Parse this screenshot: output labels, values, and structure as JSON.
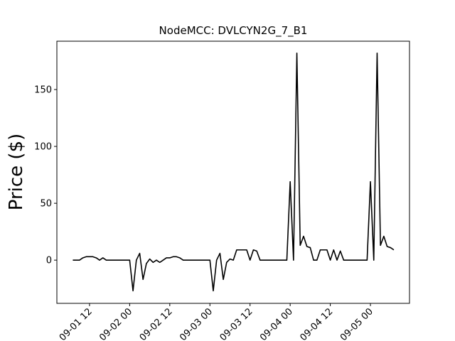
{
  "chart_data": {
    "type": "line",
    "title": "NodeMCC: DVLCYN2G_7_B1",
    "y_label": "Price ($)",
    "x": [
      "09-01 07:00",
      "09-01 08:00",
      "09-01 09:00",
      "09-01 10:00",
      "09-01 11:00",
      "09-01 12:00",
      "09-01 13:00",
      "09-01 14:00",
      "09-01 15:00",
      "09-01 16:00",
      "09-01 17:00",
      "09-01 18:00",
      "09-01 19:00",
      "09-01 20:00",
      "09-01 21:00",
      "09-01 22:00",
      "09-01 23:00",
      "09-02 00:00",
      "09-02 01:00",
      "09-02 02:00",
      "09-02 03:00",
      "09-02 04:00",
      "09-02 05:00",
      "09-02 06:00",
      "09-02 07:00",
      "09-02 08:00",
      "09-02 09:00",
      "09-02 10:00",
      "09-02 11:00",
      "09-02 12:00",
      "09-02 13:00",
      "09-02 14:00",
      "09-02 15:00",
      "09-02 16:00",
      "09-02 17:00",
      "09-02 18:00",
      "09-02 19:00",
      "09-02 20:00",
      "09-02 21:00",
      "09-02 22:00",
      "09-02 23:00",
      "09-03 00:00",
      "09-03 01:00",
      "09-03 02:00",
      "09-03 03:00",
      "09-03 04:00",
      "09-03 05:00",
      "09-03 06:00",
      "09-03 07:00",
      "09-03 08:00",
      "09-03 09:00",
      "09-03 10:00",
      "09-03 11:00",
      "09-03 12:00",
      "09-03 13:00",
      "09-03 14:00",
      "09-03 15:00",
      "09-03 16:00",
      "09-03 17:00",
      "09-03 18:00",
      "09-03 19:00",
      "09-03 20:00",
      "09-03 21:00",
      "09-03 22:00",
      "09-03 23:00",
      "09-04 00:00",
      "09-04 01:00",
      "09-04 02:00",
      "09-04 03:00",
      "09-04 04:00",
      "09-04 05:00",
      "09-04 06:00",
      "09-04 07:00",
      "09-04 08:00",
      "09-04 09:00",
      "09-04 10:00",
      "09-04 11:00",
      "09-04 12:00",
      "09-04 13:00",
      "09-04 14:00",
      "09-04 15:00",
      "09-04 16:00",
      "09-04 17:00",
      "09-04 18:00",
      "09-04 19:00",
      "09-04 20:00",
      "09-04 21:00",
      "09-04 22:00",
      "09-04 23:00",
      "09-05 00:00",
      "09-05 01:00",
      "09-05 02:00",
      "09-05 03:00",
      "09-05 04:00",
      "09-05 05:00",
      "09-05 06:00",
      "09-05 07:00"
    ],
    "series": [
      {
        "color": "#000000",
        "values": [
          0,
          0,
          0,
          2,
          3,
          3,
          3,
          2,
          0,
          2,
          0,
          0,
          0,
          0,
          0,
          0,
          0,
          0,
          -27,
          0,
          6,
          -17,
          -3,
          1,
          -2,
          0,
          -2,
          0,
          2,
          2,
          3,
          3,
          2,
          0,
          0,
          0,
          0,
          0,
          0,
          0,
          0,
          0,
          -27,
          0,
          6,
          -17,
          -2,
          1,
          0,
          9,
          9,
          9,
          9,
          0,
          9,
          8,
          0,
          0,
          0,
          0,
          0,
          0,
          0,
          0,
          0,
          69,
          0,
          182,
          13,
          21,
          12,
          11,
          0,
          0,
          9,
          9,
          9,
          0,
          9,
          0,
          8,
          0,
          0,
          0,
          0,
          0,
          0,
          0,
          0,
          69,
          0,
          182,
          13,
          21,
          12,
          11,
          9
        ]
      }
    ],
    "xlim": [
      "09-01 02:14",
      "09-05 11:41"
    ],
    "xticks": [
      {
        "value": "09-01 12:00",
        "label": "09-01 12"
      },
      {
        "value": "09-02 00:00",
        "label": "09-02 00"
      },
      {
        "value": "09-02 12:00",
        "label": "09-02 12"
      },
      {
        "value": "09-03 00:00",
        "label": "09-03 00"
      },
      {
        "value": "09-03 12:00",
        "label": "09-03 12"
      },
      {
        "value": "09-04 00:00",
        "label": "09-04 00"
      },
      {
        "value": "09-04 12:00",
        "label": "09-04 12"
      },
      {
        "value": "09-05 00:00",
        "label": "09-05 00"
      }
    ],
    "ylim": [
      -38,
      192.5
    ],
    "yticks": [
      0,
      50,
      100,
      150
    ],
    "grid": false
  }
}
